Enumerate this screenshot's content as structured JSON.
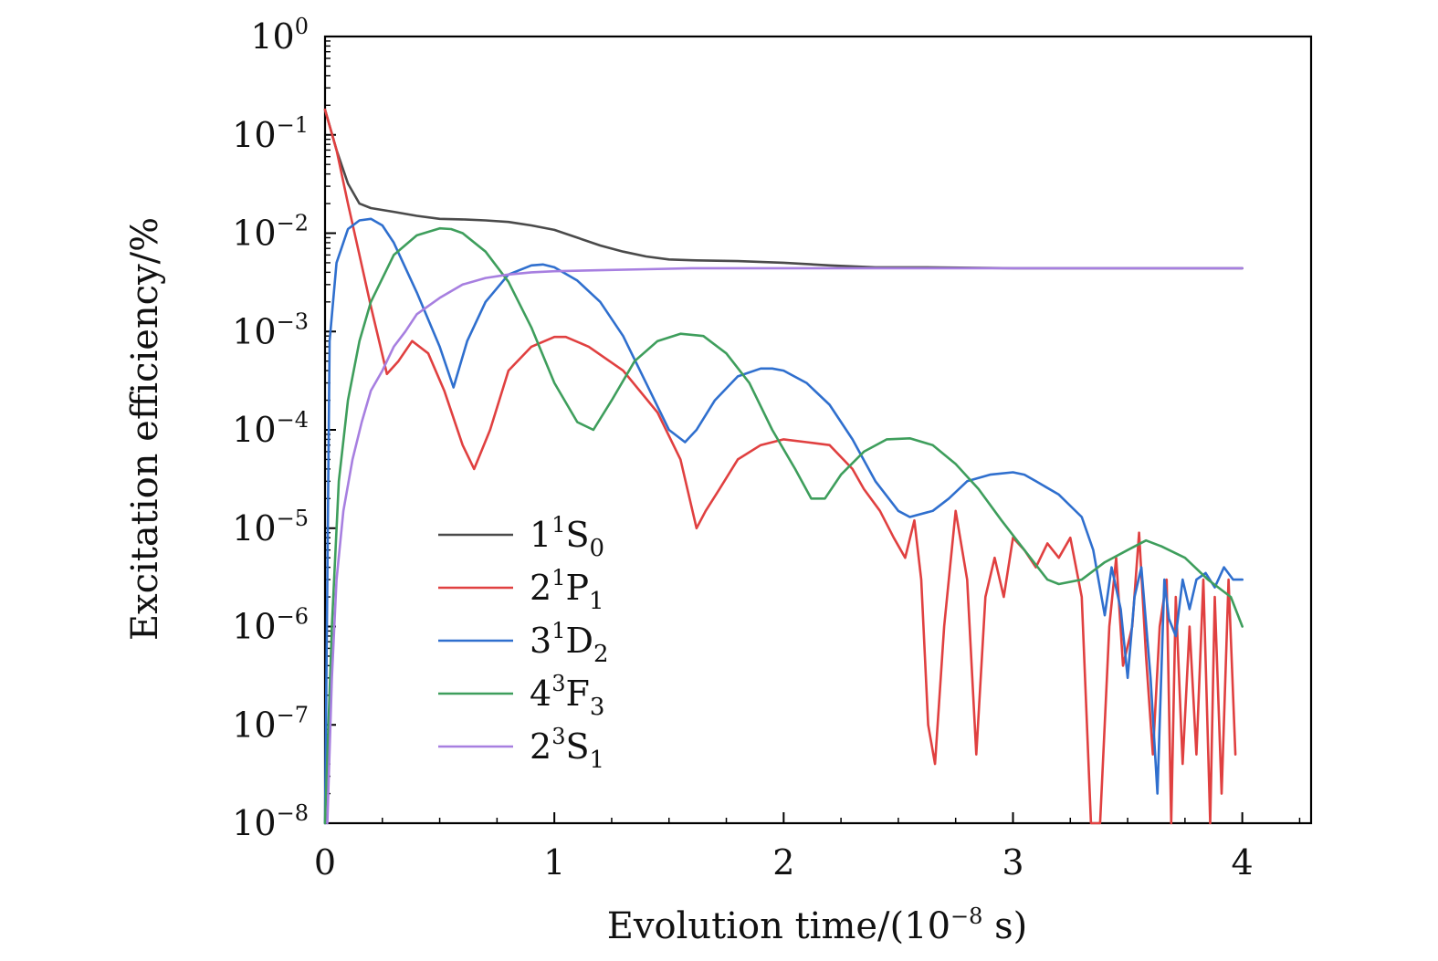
{
  "chart_data": {
    "type": "line",
    "title": "",
    "xlabel": "Evolution time/(10^-8 s)",
    "xlabel_parts": {
      "prefix": "Evolution time/(10",
      "exp": "−8",
      "suffix": " s)"
    },
    "ylabel": "Excitation efficiency/%",
    "x_scale": "linear",
    "y_scale": "log",
    "xlim": [
      0,
      4.3
    ],
    "ylim": [
      1e-08,
      1
    ],
    "x_ticks": [
      0,
      1,
      2,
      3,
      4
    ],
    "x_tick_labels": [
      "0",
      "1",
      "2",
      "3",
      "4"
    ],
    "y_ticks": [
      1,
      0.1,
      0.01,
      0.001,
      0.0001,
      1e-05,
      1e-06,
      1e-07,
      1e-08
    ],
    "y_tick_labels": [
      {
        "base": "10",
        "exp": "0"
      },
      {
        "base": "10",
        "exp": "−1"
      },
      {
        "base": "10",
        "exp": "−2"
      },
      {
        "base": "10",
        "exp": "−3"
      },
      {
        "base": "10",
        "exp": "−4"
      },
      {
        "base": "10",
        "exp": "−5"
      },
      {
        "base": "10",
        "exp": "−6"
      },
      {
        "base": "10",
        "exp": "−7"
      },
      {
        "base": "10",
        "exp": "−8"
      }
    ],
    "grid": false,
    "legend_position": "lower-left",
    "series": [
      {
        "name": "1^1S_0",
        "label": {
          "lead": "1",
          "sup": "1",
          "main": "S",
          "sub": "0"
        },
        "color": "#4a4a4a",
        "x": [
          0,
          0.05,
          0.1,
          0.15,
          0.2,
          0.3,
          0.4,
          0.5,
          0.6,
          0.7,
          0.8,
          0.9,
          1.0,
          1.1,
          1.2,
          1.3,
          1.4,
          1.5,
          1.6,
          1.8,
          2.0,
          2.2,
          2.4,
          2.6,
          3.0,
          3.5,
          4.0
        ],
        "y": [
          0.18,
          0.07,
          0.032,
          0.02,
          0.018,
          0.0165,
          0.015,
          0.014,
          0.0138,
          0.0135,
          0.013,
          0.012,
          0.0108,
          0.009,
          0.0075,
          0.0065,
          0.0058,
          0.0054,
          0.0053,
          0.0052,
          0.005,
          0.0047,
          0.0045,
          0.0045,
          0.0044,
          0.0044,
          0.0044
        ]
      },
      {
        "name": "2^1P_1",
        "label": {
          "lead": "2",
          "sup": "1",
          "main": "P",
          "sub": "1"
        },
        "color": "#e04040",
        "x": [
          0,
          0.05,
          0.1,
          0.15,
          0.2,
          0.27,
          0.32,
          0.38,
          0.45,
          0.52,
          0.6,
          0.65,
          0.72,
          0.8,
          0.9,
          1.0,
          1.05,
          1.15,
          1.3,
          1.45,
          1.55,
          1.62,
          1.66,
          1.72,
          1.8,
          1.9,
          2.0,
          2.1,
          2.2,
          2.3,
          2.35,
          2.42,
          2.48,
          2.53,
          2.57,
          2.6,
          2.63,
          2.66,
          2.7,
          2.75,
          2.8,
          2.84,
          2.88,
          2.92,
          2.96,
          3.0,
          3.05,
          3.1,
          3.15,
          3.2,
          3.25,
          3.3,
          3.34,
          3.38,
          3.42,
          3.45,
          3.48,
          3.52,
          3.55,
          3.58,
          3.61,
          3.64,
          3.67,
          3.69,
          3.71,
          3.74,
          3.77,
          3.8,
          3.83,
          3.86,
          3.88,
          3.91,
          3.94,
          3.97
        ],
        "y": [
          0.18,
          0.07,
          0.02,
          0.006,
          0.0018,
          0.00037,
          0.0005,
          0.0008,
          0.0006,
          0.00025,
          7e-05,
          4e-05,
          0.0001,
          0.0004,
          0.0007,
          0.00088,
          0.00088,
          0.0007,
          0.0004,
          0.00015,
          5e-05,
          1e-05,
          1.5e-05,
          2.5e-05,
          5e-05,
          7e-05,
          8e-05,
          7.5e-05,
          7e-05,
          4e-05,
          2.5e-05,
          1.5e-05,
          8e-06,
          5e-06,
          1.2e-05,
          3e-06,
          1e-07,
          4e-08,
          1e-06,
          1.5e-05,
          3e-06,
          5e-08,
          2e-06,
          5e-06,
          2e-06,
          8e-06,
          6e-06,
          4e-06,
          7e-06,
          5e-06,
          8e-06,
          2e-06,
          1e-08,
          1e-08,
          1e-06,
          5e-06,
          4e-07,
          1e-06,
          9e-06,
          5e-07,
          5e-08,
          1e-06,
          3e-06,
          1e-08,
          2e-06,
          4e-08,
          1e-06,
          5e-08,
          3e-06,
          1e-08,
          2e-06,
          2e-08,
          3e-06,
          5e-08
        ]
      },
      {
        "name": "3^1D_2",
        "label": {
          "lead": "3",
          "sup": "1",
          "main": "D",
          "sub": "2"
        },
        "color": "#2f6fce",
        "x": [
          0,
          0.02,
          0.05,
          0.1,
          0.15,
          0.2,
          0.25,
          0.3,
          0.4,
          0.5,
          0.56,
          0.62,
          0.7,
          0.8,
          0.9,
          0.95,
          1.0,
          1.1,
          1.2,
          1.3,
          1.4,
          1.5,
          1.57,
          1.62,
          1.7,
          1.8,
          1.9,
          1.95,
          2.0,
          2.1,
          2.2,
          2.3,
          2.4,
          2.5,
          2.55,
          2.65,
          2.72,
          2.8,
          2.9,
          3.0,
          3.05,
          3.1,
          3.2,
          3.3,
          3.35,
          3.4,
          3.43,
          3.47,
          3.5,
          3.53,
          3.56,
          3.6,
          3.63,
          3.66,
          3.68,
          3.71,
          3.74,
          3.77,
          3.8,
          3.84,
          3.88,
          3.92,
          3.96,
          4.0
        ],
        "y": [
          1e-08,
          0.0008,
          0.005,
          0.011,
          0.0135,
          0.014,
          0.012,
          0.008,
          0.0025,
          0.0007,
          0.00027,
          0.0008,
          0.002,
          0.0038,
          0.0047,
          0.0048,
          0.0045,
          0.0033,
          0.002,
          0.0009,
          0.0003,
          0.0001,
          7.5e-05,
          0.0001,
          0.0002,
          0.00035,
          0.00042,
          0.00042,
          0.0004,
          0.0003,
          0.00018,
          8e-05,
          3e-05,
          1.5e-05,
          1.3e-05,
          1.5e-05,
          2e-05,
          3e-05,
          3.5e-05,
          3.7e-05,
          3.5e-05,
          3e-05,
          2.2e-05,
          1.3e-05,
          6e-06,
          1.3e-06,
          4e-06,
          1.5e-06,
          3e-07,
          2e-06,
          4e-06,
          3e-07,
          2e-08,
          3e-06,
          1.2e-06,
          8e-07,
          3e-06,
          1.5e-06,
          3e-06,
          3.5e-06,
          2.5e-06,
          4e-06,
          3e-06,
          3e-06
        ]
      },
      {
        "name": "4^3F_3",
        "label": {
          "lead": "4",
          "sup": "3",
          "main": "F",
          "sub": "3"
        },
        "color": "#3e9e5c",
        "x": [
          0,
          0.03,
          0.06,
          0.1,
          0.15,
          0.2,
          0.3,
          0.4,
          0.5,
          0.55,
          0.6,
          0.7,
          0.8,
          0.9,
          1.0,
          1.1,
          1.17,
          1.25,
          1.35,
          1.45,
          1.55,
          1.65,
          1.75,
          1.85,
          1.95,
          2.05,
          2.12,
          2.18,
          2.25,
          2.35,
          2.45,
          2.55,
          2.65,
          2.75,
          2.85,
          2.95,
          3.05,
          3.15,
          3.2,
          3.3,
          3.4,
          3.5,
          3.58,
          3.65,
          3.75,
          3.85,
          3.95,
          4.0
        ],
        "y": [
          1e-08,
          1e-06,
          3e-05,
          0.0002,
          0.0008,
          0.002,
          0.006,
          0.0095,
          0.0112,
          0.011,
          0.01,
          0.0065,
          0.0032,
          0.0011,
          0.0003,
          0.00012,
          0.0001,
          0.0002,
          0.0005,
          0.0008,
          0.00095,
          0.0009,
          0.0006,
          0.0003,
          0.0001,
          4e-05,
          2e-05,
          2e-05,
          3.5e-05,
          6e-05,
          8e-05,
          8.2e-05,
          7e-05,
          4.5e-05,
          2.5e-05,
          1.2e-05,
          6e-06,
          3e-06,
          2.7e-06,
          3e-06,
          4.5e-06,
          6e-06,
          7.5e-06,
          6.5e-06,
          5e-06,
          3e-06,
          2e-06,
          1e-06
        ]
      },
      {
        "name": "2^3S_1",
        "label": {
          "lead": "2",
          "sup": "3",
          "main": "S",
          "sub": "1"
        },
        "color": "#a77fe0",
        "x": [
          0.01,
          0.03,
          0.05,
          0.08,
          0.12,
          0.16,
          0.2,
          0.25,
          0.3,
          0.35,
          0.4,
          0.5,
          0.6,
          0.7,
          0.8,
          0.9,
          1.0,
          1.2,
          1.4,
          1.6,
          2.0,
          2.5,
          3.0,
          3.5,
          4.0
        ],
        "y": [
          1e-08,
          3e-07,
          3e-06,
          1.5e-05,
          5e-05,
          0.00012,
          0.00025,
          0.0004,
          0.0007,
          0.001,
          0.0015,
          0.0022,
          0.003,
          0.0035,
          0.0038,
          0.004,
          0.0041,
          0.0042,
          0.0043,
          0.0044,
          0.0044,
          0.0044,
          0.0044,
          0.0044,
          0.0044
        ]
      }
    ]
  }
}
